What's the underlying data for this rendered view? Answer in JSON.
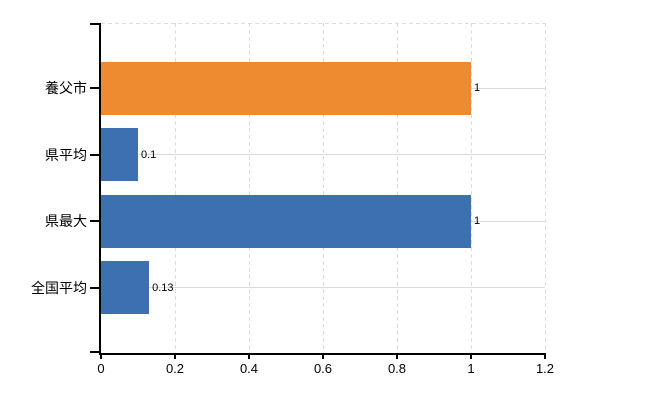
{
  "chart_data": {
    "type": "bar",
    "orientation": "horizontal",
    "title": "",
    "xlabel": "",
    "ylabel": "",
    "categories": [
      "養父市",
      "県平均",
      "県最大",
      "全国平均"
    ],
    "values": [
      1,
      0.1,
      1,
      0.13
    ],
    "value_labels": [
      "1",
      "0.1",
      "1",
      "0.13"
    ],
    "bar_colors": [
      "#EE8B30",
      "#3D70B0",
      "#3D70B0",
      "#3D70B0"
    ],
    "x_ticks": [
      0,
      0.2,
      0.4,
      0.6,
      0.8,
      1,
      1.2
    ],
    "x_tick_labels": [
      "0",
      "0.2",
      "0.4",
      "0.6",
      "0.8",
      "1",
      "1.2"
    ],
    "xlim": [
      0,
      1.2
    ],
    "grid": {
      "vertical": "dashed at every x tick",
      "horizontal": "solid at every category center",
      "top_border": "dashed"
    },
    "legend": "none",
    "colors": {
      "axis": "#000000",
      "text": "#000000",
      "grid_vertical": "#DCDCDC",
      "grid_horizontal": "#D6DCD6"
    }
  }
}
